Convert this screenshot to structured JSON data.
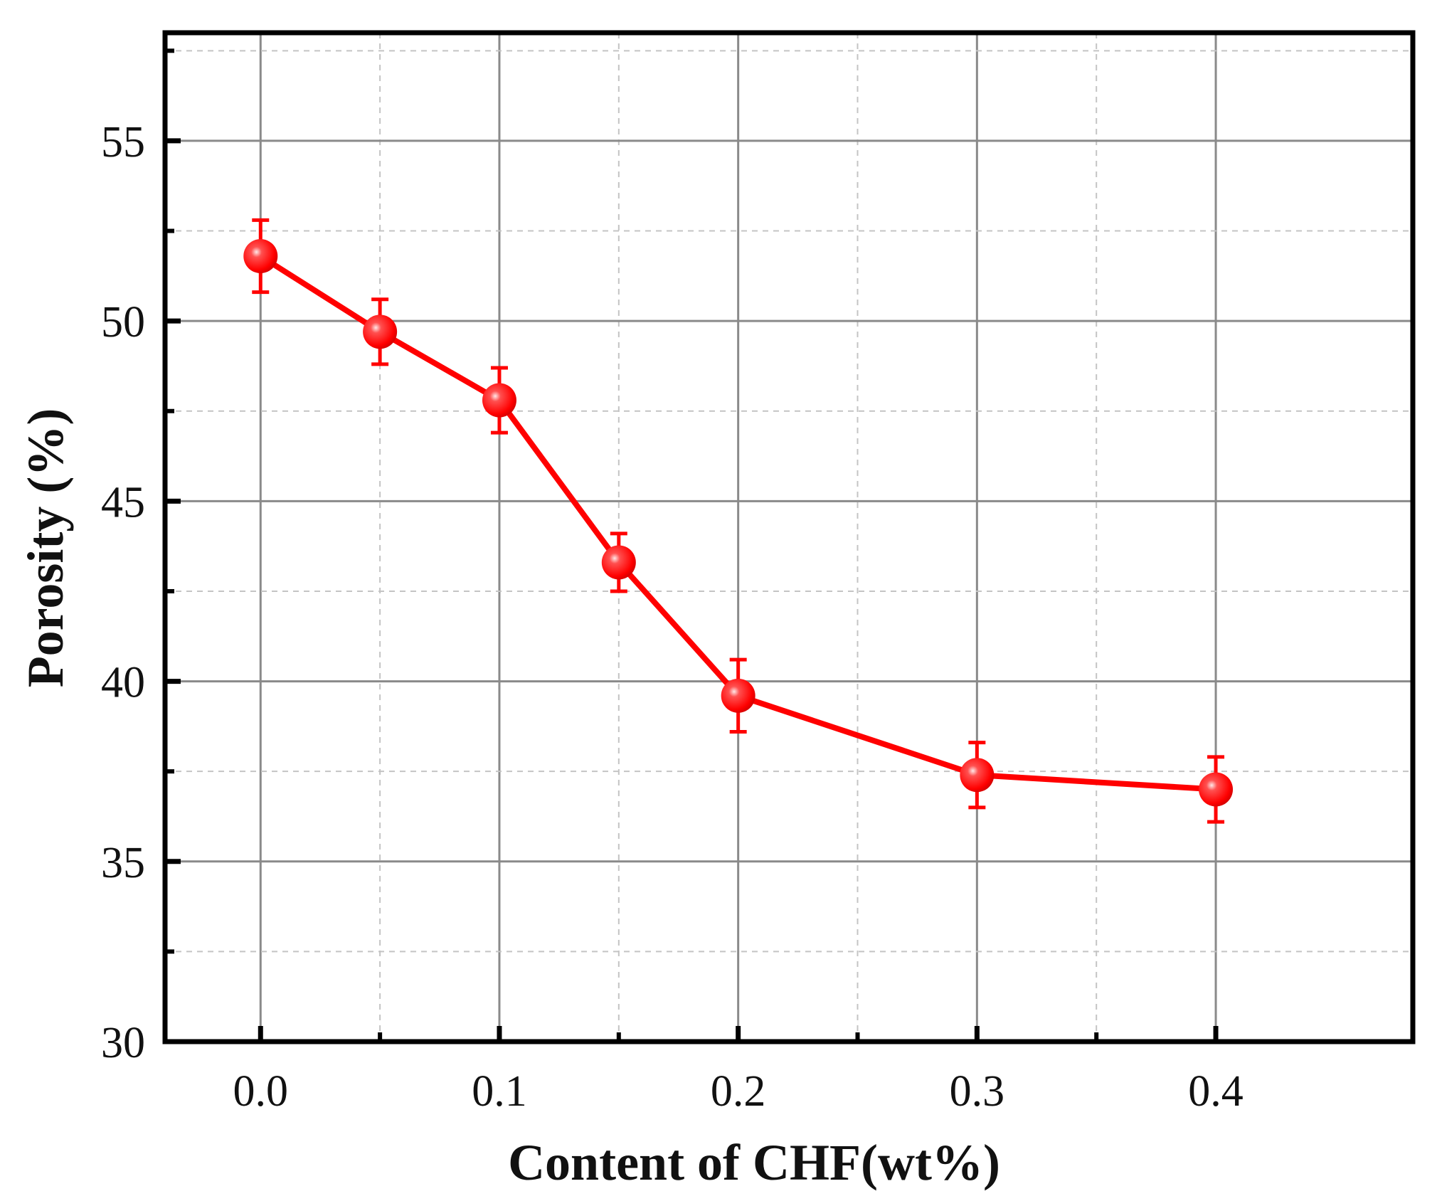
{
  "chart_data": {
    "type": "line",
    "xlabel": "Content of CHF(wt%)",
    "ylabel": "Porosity (%)",
    "xlim": [
      -0.04,
      0.4825
    ],
    "ylim": [
      30,
      58
    ],
    "x_ticks": [
      "0.0",
      "0.1",
      "0.2",
      "0.3",
      "0.4"
    ],
    "y_ticks": [
      "30",
      "35",
      "40",
      "45",
      "50",
      "55"
    ],
    "grid": true,
    "color": "#ff0000",
    "series": [
      {
        "x": [
          0.0,
          0.05,
          0.1,
          0.15,
          0.2,
          0.3,
          0.4
        ],
        "values": [
          51.8,
          49.7,
          47.8,
          43.3,
          39.6,
          37.4,
          37.0
        ],
        "error": [
          1.0,
          0.9,
          0.9,
          0.8,
          1.0,
          0.9,
          0.9
        ]
      }
    ]
  }
}
